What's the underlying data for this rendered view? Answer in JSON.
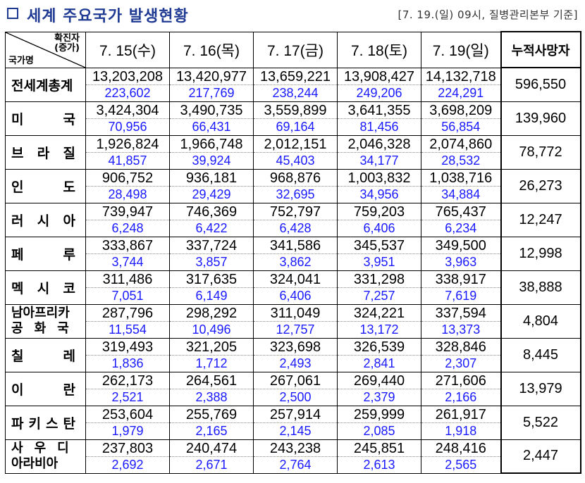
{
  "header": {
    "title": "세계 주요국가 발생현황",
    "source": "[7. 19.(일) 09시, 질병관리본부 기준]"
  },
  "table": {
    "corner_top": "확진자\n(증가)",
    "corner_bottom": "국가명",
    "dates": [
      "7. 15(수)",
      "7. 16(목)",
      "7. 17(금)",
      "7. 18(토)",
      "7. 19(일)"
    ],
    "total_header": "누적사망자",
    "rows": [
      {
        "country": "전세계총계",
        "cases": [
          "13,203,208",
          "13,420,977",
          "13,659,221",
          "13,908,427",
          "14,132,718"
        ],
        "increase": [
          "223,602",
          "217,769",
          "238,244",
          "249,206",
          "224,291"
        ],
        "deaths": "596,550"
      },
      {
        "country": "미 국",
        "cases": [
          "3,424,304",
          "3,490,735",
          "3,559,899",
          "3,641,355",
          "3,698,209"
        ],
        "increase": [
          "70,956",
          "66,431",
          "69,164",
          "81,456",
          "56,854"
        ],
        "deaths": "139,960"
      },
      {
        "country": "브 라 질",
        "cases": [
          "1,926,824",
          "1,966,748",
          "2,012,151",
          "2,046,328",
          "2,074,860"
        ],
        "increase": [
          "41,857",
          "39,924",
          "45,403",
          "34,177",
          "28,532"
        ],
        "deaths": "78,772"
      },
      {
        "country": "인 도",
        "cases": [
          "906,752",
          "936,181",
          "968,876",
          "1,003,832",
          "1,038,716"
        ],
        "increase": [
          "28,498",
          "29,429",
          "32,695",
          "34,956",
          "34,884"
        ],
        "deaths": "26,273"
      },
      {
        "country": "러 시 아",
        "cases": [
          "739,947",
          "746,369",
          "752,797",
          "759,203",
          "765,437"
        ],
        "increase": [
          "6,248",
          "6,422",
          "6,428",
          "6,406",
          "6,234"
        ],
        "deaths": "12,247"
      },
      {
        "country": "페 루",
        "cases": [
          "333,867",
          "337,724",
          "341,586",
          "345,537",
          "349,500"
        ],
        "increase": [
          "3,744",
          "3,857",
          "3,862",
          "3,951",
          "3,963"
        ],
        "deaths": "12,998"
      },
      {
        "country": "멕 시 코",
        "cases": [
          "311,486",
          "317,635",
          "324,041",
          "331,298",
          "338,917"
        ],
        "increase": [
          "7,051",
          "6,149",
          "6,406",
          "7,257",
          "7,619"
        ],
        "deaths": "38,888"
      },
      {
        "country_lines": [
          "남아프리카",
          "공 화 국"
        ],
        "cases": [
          "287,796",
          "298,292",
          "311,049",
          "324,221",
          "337,594"
        ],
        "increase": [
          "11,554",
          "10,496",
          "12,757",
          "13,172",
          "13,373"
        ],
        "deaths": "4,804"
      },
      {
        "country": "칠 레",
        "cases": [
          "319,493",
          "321,205",
          "323,698",
          "326,539",
          "328,846"
        ],
        "increase": [
          "1,836",
          "1,712",
          "2,493",
          "2,841",
          "2,307"
        ],
        "deaths": "8,445"
      },
      {
        "country": "이 란",
        "cases": [
          "262,173",
          "264,561",
          "267,061",
          "269,440",
          "271,606"
        ],
        "increase": [
          "2,521",
          "2,388",
          "2,500",
          "2,379",
          "2,166"
        ],
        "deaths": "13,979"
      },
      {
        "country": "파 키 스 탄",
        "cases": [
          "253,604",
          "255,769",
          "257,914",
          "259,999",
          "261,917"
        ],
        "increase": [
          "1,979",
          "2,165",
          "2,145",
          "2,085",
          "1,918"
        ],
        "deaths": "5,522"
      },
      {
        "country_lines": [
          "사 우 디",
          "아라비아"
        ],
        "cases": [
          "237,803",
          "240,474",
          "243,238",
          "245,851",
          "248,416"
        ],
        "increase": [
          "2,692",
          "2,671",
          "2,764",
          "2,613",
          "2,565"
        ],
        "deaths": "2,447"
      }
    ]
  },
  "colors": {
    "title": "#1f3a93",
    "increase": "#1a1aff"
  }
}
